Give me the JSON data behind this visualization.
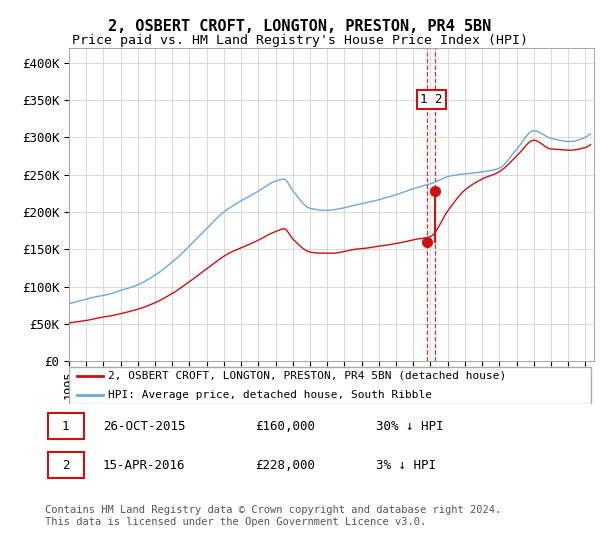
{
  "title": "2, OSBERT CROFT, LONGTON, PRESTON, PR4 5BN",
  "subtitle": "Price paid vs. HM Land Registry's House Price Index (HPI)",
  "ylabel_ticks": [
    "£0",
    "£50K",
    "£100K",
    "£150K",
    "£200K",
    "£250K",
    "£300K",
    "£350K",
    "£400K"
  ],
  "ytick_values": [
    0,
    50000,
    100000,
    150000,
    200000,
    250000,
    300000,
    350000,
    400000
  ],
  "ylim": [
    0,
    420000
  ],
  "xlim_start": 1995.0,
  "xlim_end": 2025.5,
  "hpi_color": "#6fa8d4",
  "price_color": "#cc1111",
  "sale1_x": 2015.82,
  "sale1_y": 160000,
  "sale2_x": 2016.29,
  "sale2_y": 228000,
  "legend_label1": "2, OSBERT CROFT, LONGTON, PRESTON, PR4 5BN (detached house)",
  "legend_label2": "HPI: Average price, detached house, South Ribble",
  "table_row1": [
    "1",
    "26-OCT-2015",
    "£160,000",
    "30% ↓ HPI"
  ],
  "table_row2": [
    "2",
    "15-APR-2016",
    "£228,000",
    "3% ↓ HPI"
  ],
  "footer": "Contains HM Land Registry data © Crown copyright and database right 2024.\nThis data is licensed under the Open Government Licence v3.0.",
  "bg_color": "#ffffff",
  "grid_color": "#cccccc"
}
